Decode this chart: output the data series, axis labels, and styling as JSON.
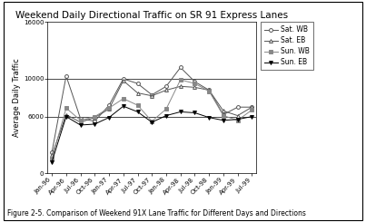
{
  "title": "Weekend Daily Directional Traffic on SR 91 Express Lanes",
  "ylabel": "Average Daily Traffic",
  "caption": "Figure 2-5. Comparison of Weekend 91X Lane Traffic for Different Days and Directions",
  "ylim": [
    0,
    16000
  ],
  "yticks": [
    0,
    6000,
    10000,
    16000
  ],
  "x_labels": [
    "Jan-96",
    "Apr-96",
    "Jul-96",
    "Oct-96",
    "Jan-97",
    "Apr-97",
    "Jul-97",
    "Oct-97",
    "Jan-98",
    "Apr-98",
    "Jul-98",
    "Oct-98",
    "Jan-99",
    "Apr-99",
    "Jul-99"
  ],
  "sat_wb": [
    2200,
    10300,
    5800,
    5500,
    7200,
    10000,
    9500,
    8300,
    9200,
    11200,
    9700,
    8800,
    6200,
    7000,
    7000
  ],
  "sat_eb": [
    1900,
    6200,
    5400,
    5900,
    6800,
    9800,
    8500,
    8200,
    8800,
    9200,
    9100,
    8800,
    6600,
    6100,
    7000
  ],
  "sun_wb": [
    1500,
    6900,
    5600,
    6000,
    6900,
    7900,
    7200,
    5500,
    6800,
    9900,
    9500,
    8700,
    6100,
    5600,
    6700
  ],
  "sun_eb": [
    1200,
    6000,
    5100,
    5200,
    5900,
    7100,
    6500,
    5400,
    6100,
    6500,
    6400,
    5900,
    5600,
    5700,
    6000
  ],
  "series_names": [
    "Sat. WB",
    "Sat. EB",
    "Sun. WB",
    "Sun. EB"
  ],
  "markers": [
    "o",
    "^",
    "s",
    "v"
  ],
  "line_colors": [
    "#555555",
    "#555555",
    "#888888",
    "#000000"
  ],
  "marker_fills": [
    "white",
    "white",
    "#888888",
    "#000000"
  ],
  "figure_bg": "#f2f2f2",
  "plot_bg": "#ffffff",
  "title_fontsize": 7.5,
  "label_fontsize": 6,
  "tick_fontsize": 5,
  "legend_fontsize": 5.5,
  "caption_fontsize": 5.5
}
